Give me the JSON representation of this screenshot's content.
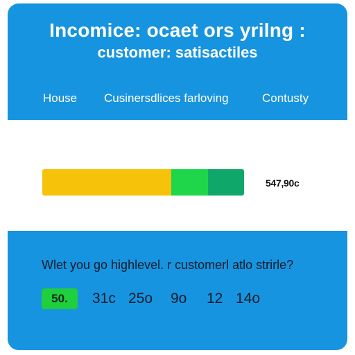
{
  "header": {
    "title": "Incomice: ocaet ors yrilng :",
    "subtitle": "customer: satisactiles"
  },
  "nav": {
    "items": [
      {
        "label": "House"
      },
      {
        "label": "Cusinersdlices farloving"
      },
      {
        "label": "Contusty"
      }
    ]
  },
  "progress": {
    "segments": [
      {
        "color": "#f6c20a",
        "fraction": 0.64
      },
      {
        "color": "#1fd64a",
        "fraction": 0.18
      },
      {
        "color": "#10a86a",
        "fraction": 0.18
      }
    ],
    "value_text": "547,90c"
  },
  "survey": {
    "question": "Wlet you go highlevel. r customerl atlo strirle?",
    "options": [
      {
        "label": "50.",
        "selected": true
      },
      {
        "label": "31c",
        "selected": false
      },
      {
        "label": "25o",
        "selected": false
      },
      {
        "label": "9o",
        "selected": false
      },
      {
        "label": "12",
        "selected": false
      },
      {
        "label": "14o",
        "selected": false
      }
    ]
  },
  "colors": {
    "panel_blue": "#1794df",
    "selected_green": "#1fcf3d"
  }
}
